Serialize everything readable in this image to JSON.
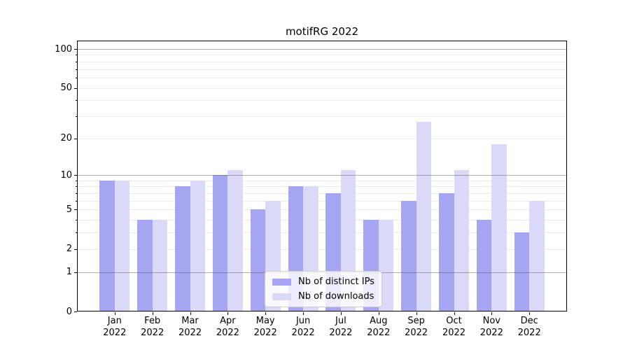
{
  "title": "motifRG 2022",
  "chart_data": {
    "type": "bar",
    "title": "motifRG 2022",
    "categories": [
      "Jan 2022",
      "Feb 2022",
      "Mar 2022",
      "Apr 2022",
      "May 2022",
      "Jun 2022",
      "Jul 2022",
      "Aug 2022",
      "Sep 2022",
      "Oct 2022",
      "Nov 2022",
      "Dec 2022"
    ],
    "series": [
      {
        "name": "Nb of distinct IPs",
        "color": "#a5a5f2",
        "values": [
          9,
          4,
          8,
          10,
          5,
          8,
          7,
          4,
          6,
          7,
          4,
          3
        ]
      },
      {
        "name": "Nb of downloads",
        "color": "#dadaf8",
        "values": [
          9,
          4,
          9,
          11,
          6,
          8,
          11,
          4,
          27,
          11,
          18,
          6
        ]
      }
    ],
    "xlabel": "",
    "ylabel": "",
    "yscale": "log1p",
    "ylim": [
      0,
      116
    ],
    "ytick_labels": [
      0,
      1,
      2,
      5,
      10,
      20,
      50,
      100
    ],
    "major_gridlines": [
      1,
      10,
      100
    ],
    "minor_gridlines": [
      2,
      3,
      4,
      5,
      6,
      7,
      8,
      9,
      20,
      30,
      40,
      50,
      60,
      70,
      80,
      90
    ],
    "grid": true,
    "legend": {
      "position": "lower-center-left-inside",
      "entries": [
        "Nb of distinct IPs",
        "Nb of downloads"
      ]
    }
  }
}
